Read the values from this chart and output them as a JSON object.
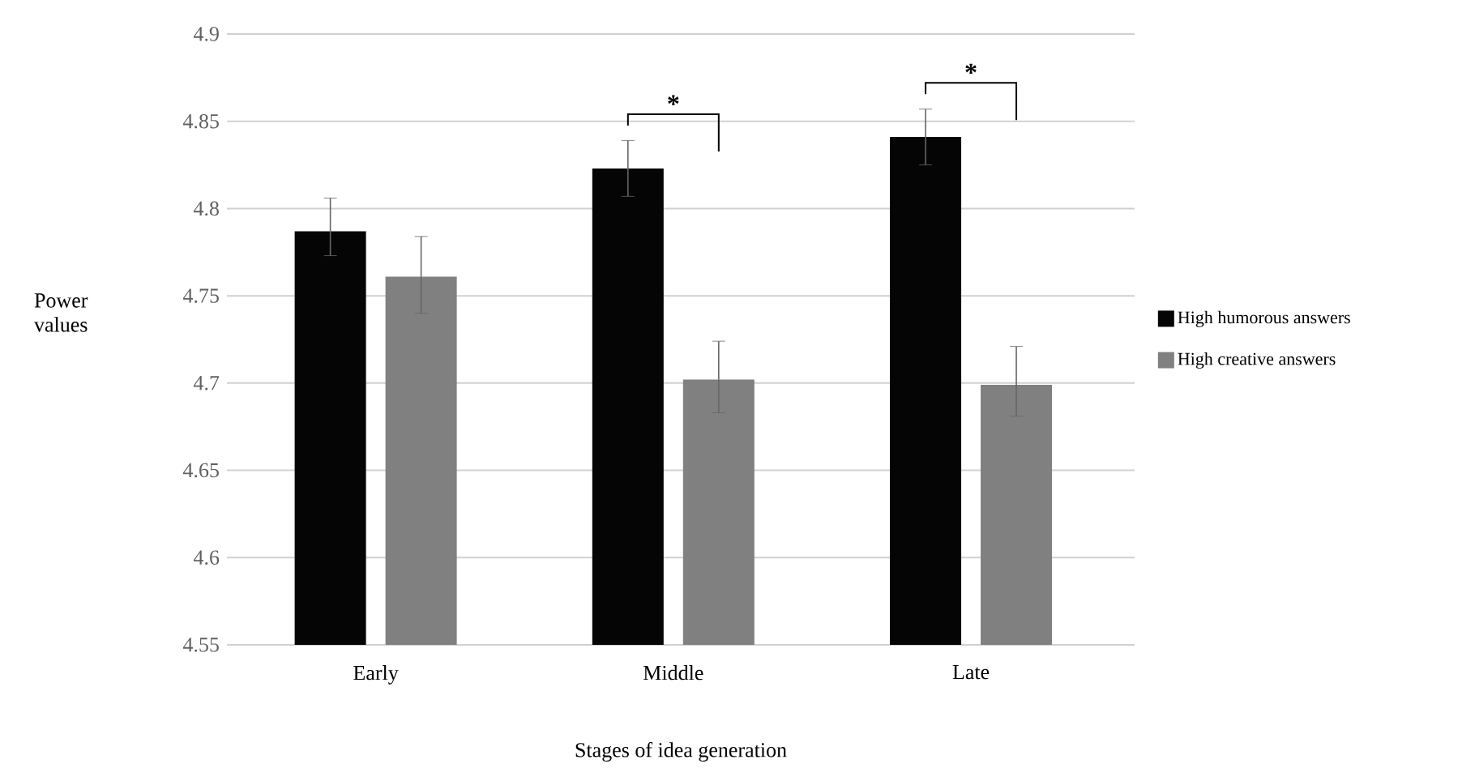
{
  "chart_data": {
    "type": "bar",
    "categories": [
      "Early",
      "Middle",
      "Late"
    ],
    "series": [
      {
        "name": "High humorous answers",
        "color": "#050505",
        "values": [
          4.787,
          4.823,
          4.841
        ],
        "errors": [
          [
            4.773,
            4.806
          ],
          [
            4.807,
            4.839
          ],
          [
            4.825,
            4.857
          ]
        ]
      },
      {
        "name": "High creative answers",
        "color": "#808080",
        "values": [
          4.761,
          4.702,
          4.699
        ],
        "errors": [
          [
            4.74,
            4.784
          ],
          [
            4.683,
            4.724
          ],
          [
            4.681,
            4.721
          ]
        ]
      }
    ],
    "xlabel": "Stages of idea generation",
    "ylabel": "Power values",
    "ylim": [
      4.55,
      4.9
    ],
    "yticks": [
      4.55,
      4.6,
      4.65,
      4.7,
      4.75,
      4.8,
      4.85,
      4.9
    ],
    "grid": "y",
    "legend": "right",
    "annotations": [
      "*",
      "*"
    ]
  }
}
